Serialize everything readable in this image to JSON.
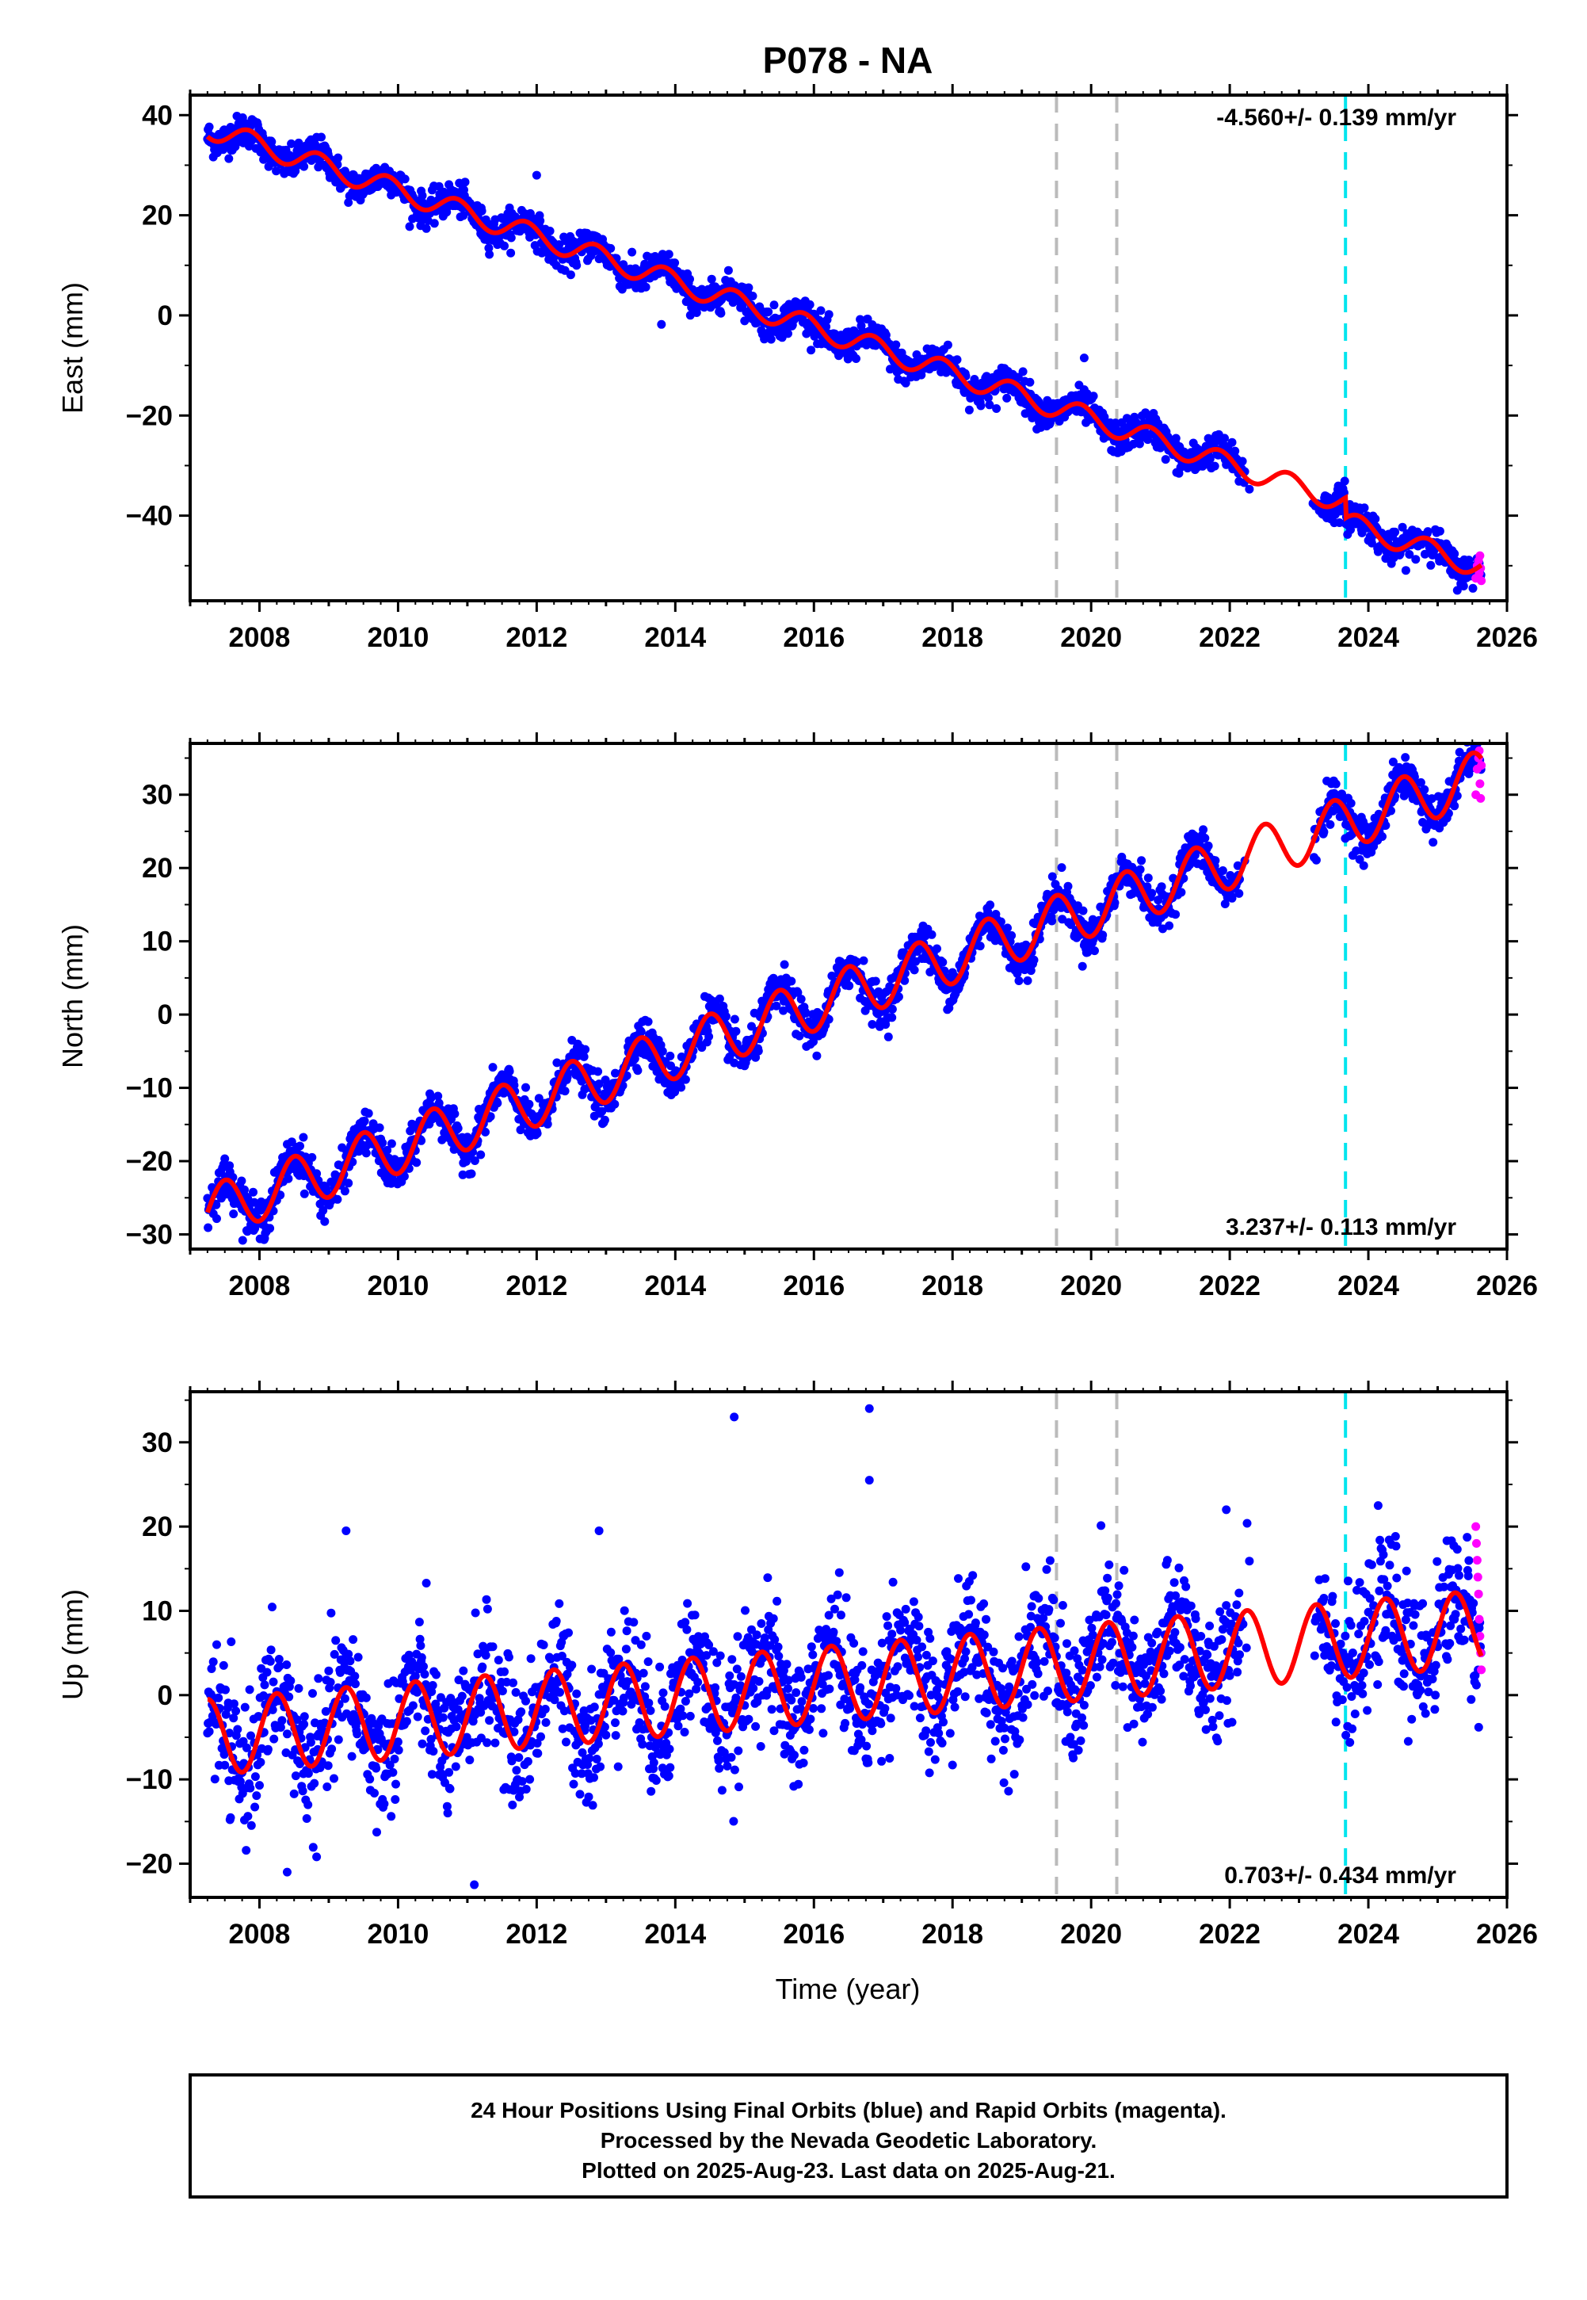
{
  "title": "P078 - NA",
  "colors": {
    "final_points": "#0000ff",
    "rapid_points": "#ff00ff",
    "model_line": "#ff0000",
    "equipment_change": "#bbbbbb",
    "event": "#00e5ee"
  },
  "x_axis": {
    "label": "Time (year)",
    "range": [
      2007.0,
      2026.0
    ],
    "major_ticks": [
      2008,
      2010,
      2012,
      2014,
      2016,
      2018,
      2020,
      2022,
      2024,
      2026
    ]
  },
  "footer": {
    "line1": "24 Hour Positions Using Final Orbits (blue) and Rapid Orbits (magenta).",
    "line2": "Processed by the Nevada Geodetic Laboratory.",
    "line3": "Plotted on 2025-Aug-23. Last data on 2025-Aug-21."
  },
  "chart_data": [
    {
      "type": "scatter",
      "name": "east",
      "ylabel": "East (mm)",
      "rate_text": "-4.560+/- 0.139 mm/yr",
      "rate_position": "top-right",
      "xlim": [
        2007.0,
        2026.0
      ],
      "ylim": [
        -57,
        44
      ],
      "yticks": [
        -40,
        -20,
        0,
        20,
        40
      ],
      "trend": {
        "x0": 2007.25,
        "y0": 37.5,
        "rate": -4.56
      },
      "seasonal": {
        "amplitude": 2.2,
        "phase": 0.6
      },
      "offsets": [
        {
          "x": 2023.67,
          "dy": -4.0
        }
      ],
      "data_span": [
        2007.25,
        2025.63
      ],
      "gaps": [
        [
          2022.3,
          2023.2
        ]
      ],
      "noise": 1.6,
      "rapid": {
        "x": [
          2025.55,
          2025.57,
          2025.59,
          2025.6,
          2025.61,
          2025.62,
          2025.63
        ],
        "y": [
          -52.5,
          -50.0,
          -49.0,
          -51.5,
          -48.0,
          -50.5,
          -53.0
        ]
      },
      "outliers": [
        {
          "x": 2012.0,
          "y": 28.0
        },
        {
          "x": 2013.8,
          "y": -1.8
        },
        {
          "x": 2019.9,
          "y": -8.5
        }
      ],
      "equipment_changes": [
        2019.5,
        2020.37
      ],
      "events": [
        2023.67
      ]
    },
    {
      "type": "scatter",
      "name": "north",
      "ylabel": "North (mm)",
      "rate_text": "3.237+/- 0.113 mm/yr",
      "rate_position": "bottom-right",
      "xlim": [
        2007.0,
        2026.0
      ],
      "ylim": [
        -32,
        37
      ],
      "yticks": [
        -30,
        -20,
        -10,
        0,
        10,
        20,
        30
      ],
      "trend": {
        "x0": 2007.25,
        "y0": -27.0,
        "rate": 3.237
      },
      "seasonal": {
        "amplitude": 3.6,
        "phase": 0.25
      },
      "offsets": [],
      "data_span": [
        2007.25,
        2025.63
      ],
      "gaps": [
        [
          2022.3,
          2023.2
        ]
      ],
      "noise": 1.4,
      "rapid": {
        "x": [
          2025.55,
          2025.57,
          2025.59,
          2025.6,
          2025.61,
          2025.62,
          2025.63
        ],
        "y": [
          30.0,
          33.5,
          35.0,
          36.0,
          31.5,
          29.5,
          34.0
        ]
      },
      "outliers": [],
      "equipment_changes": [
        2019.5,
        2020.37
      ],
      "events": [
        2023.67
      ]
    },
    {
      "type": "scatter",
      "name": "up",
      "ylabel": "Up (mm)",
      "rate_text": "0.703+/- 0.434 mm/yr",
      "rate_position": "bottom-right",
      "xlim": [
        2007.0,
        2026.0
      ],
      "ylim": [
        -24,
        36
      ],
      "yticks": [
        -20,
        -10,
        0,
        10,
        20,
        30
      ],
      "trend": {
        "x0": 2007.25,
        "y0": -5.0,
        "rate": 0.703
      },
      "seasonal": {
        "amplitude": 4.5,
        "phase": 0.0
      },
      "offsets": [],
      "data_span": [
        2007.25,
        2025.63
      ],
      "gaps": [
        [
          2022.3,
          2023.2
        ]
      ],
      "noise": 3.8,
      "rapid": {
        "x": [
          2025.55,
          2025.56,
          2025.57,
          2025.58,
          2025.59,
          2025.6,
          2025.61,
          2025.62,
          2025.63
        ],
        "y": [
          20.0,
          18.0,
          16.0,
          14.0,
          12.0,
          9.0,
          7.0,
          5.0,
          3.0
        ]
      },
      "outliers": [
        {
          "x": 2014.85,
          "y": 33.0
        },
        {
          "x": 2016.8,
          "y": 34.0
        },
        {
          "x": 2016.8,
          "y": 25.5
        },
        {
          "x": 2011.1,
          "y": -22.5
        },
        {
          "x": 2009.25,
          "y": 19.5
        },
        {
          "x": 2021.95,
          "y": 22.0
        },
        {
          "x": 2012.9,
          "y": 19.5
        },
        {
          "x": 2008.4,
          "y": -21.0
        }
      ],
      "equipment_changes": [
        2019.5,
        2020.37
      ],
      "events": [
        2023.67
      ]
    }
  ]
}
